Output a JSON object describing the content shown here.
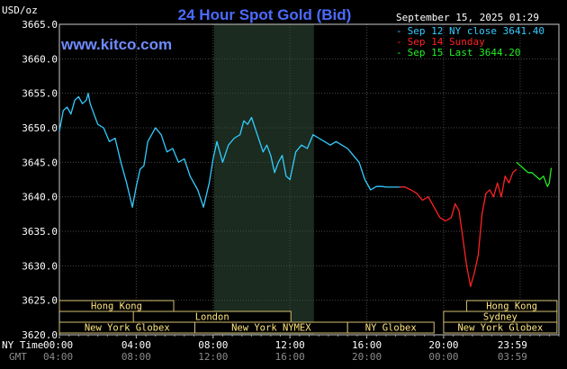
{
  "chart_data": {
    "type": "line",
    "title": "24 Hour Spot Gold (Bid)",
    "watermark": "www.kitco.com",
    "y_unit": "USD/oz",
    "timestamp": "September 15, 2025 01:29",
    "ylim": [
      3620,
      3665
    ],
    "y_ticks": [
      "3665.0",
      "3660.0",
      "3655.0",
      "3650.0",
      "3645.0",
      "3640.0",
      "3635.0",
      "3630.0",
      "3625.0",
      "3620.0"
    ],
    "x_row_labels": [
      "NY Time",
      "GMT"
    ],
    "x_ticks_ny": [
      "00:00",
      "04:00",
      "08:00",
      "12:00",
      "16:00",
      "20:00",
      "23:59"
    ],
    "x_ticks_gmt": [
      "04:00",
      "08:00",
      "12:00",
      "16:00",
      "20:00",
      "00:00",
      "03:59"
    ],
    "x_tick_hours": [
      0,
      4,
      8,
      12,
      16,
      20,
      23.983
    ],
    "legend": [
      {
        "text": "Sep 12 NY close 3641.40",
        "color": "#33ccff"
      },
      {
        "text": "Sep 14 Sunday",
        "color": "#ff2222"
      },
      {
        "text": "Sep 15 Last 3644.20",
        "color": "#22ee22"
      }
    ],
    "shaded_region_hours": [
      8.05,
      13.25
    ],
    "series": [
      {
        "color": "#33ccff",
        "x": [
          0,
          0.2,
          0.4,
          0.6,
          0.8,
          1.0,
          1.2,
          1.4,
          1.5,
          1.6,
          1.8,
          2.0,
          2.3,
          2.6,
          2.9,
          3.2,
          3.5,
          3.8,
          4.0,
          4.2,
          4.4,
          4.6,
          4.8,
          5.0,
          5.3,
          5.6,
          5.9,
          6.2,
          6.5,
          6.8,
          7.2,
          7.5,
          7.8,
          8.0,
          8.2,
          8.5,
          8.8,
          9.1,
          9.4,
          9.6,
          9.8,
          10.0,
          10.3,
          10.6,
          10.8,
          11.0,
          11.2,
          11.4,
          11.6,
          11.8,
          12.0,
          12.3,
          12.6,
          12.9,
          13.2,
          13.5,
          13.8,
          14.1,
          14.4,
          14.7,
          15.0,
          15.3,
          15.6,
          15.9,
          16.2,
          16.5,
          16.8,
          17.0,
          17.3,
          17.6,
          17.9,
          18.0
        ],
        "y": [
          3649.5,
          3652.5,
          3653.0,
          3652.0,
          3654.0,
          3654.5,
          3653.5,
          3654.0,
          3655.0,
          3653.5,
          3652.0,
          3650.5,
          3650.0,
          3648.0,
          3648.5,
          3645.0,
          3642.0,
          3638.5,
          3641.5,
          3644.0,
          3644.5,
          3648.0,
          3649.0,
          3650.0,
          3649.0,
          3646.5,
          3647.0,
          3645.0,
          3645.5,
          3643.0,
          3641.0,
          3638.5,
          3642.0,
          3645.5,
          3648.0,
          3645.0,
          3647.5,
          3648.5,
          3649.0,
          3651.0,
          3650.5,
          3651.5,
          3649.0,
          3646.5,
          3647.5,
          3646.0,
          3643.5,
          3645.0,
          3646.0,
          3643.0,
          3642.5,
          3646.5,
          3647.5,
          3647.0,
          3649.0,
          3648.5,
          3648.0,
          3647.5,
          3648.0,
          3647.5,
          3647.0,
          3646.0,
          3645.0,
          3642.5,
          3641.0,
          3641.5,
          3641.5,
          3641.4,
          3641.4,
          3641.4,
          3641.4,
          3641.4
        ]
      },
      {
        "color": "#ff2222",
        "x": [
          17.7,
          18.0,
          18.3,
          18.6,
          18.9,
          19.2,
          19.5,
          19.8,
          20.1,
          20.4,
          20.6,
          20.8,
          21.0,
          21.2,
          21.4,
          21.6,
          21.8,
          22.0,
          22.2,
          22.4,
          22.6,
          22.8,
          23.0,
          23.2,
          23.4,
          23.6,
          23.8
        ],
        "y": [
          3641.4,
          3641.4,
          3641.0,
          3640.5,
          3639.5,
          3640.0,
          3638.5,
          3637.0,
          3636.5,
          3637.0,
          3639.0,
          3638.0,
          3634.0,
          3630.0,
          3627.0,
          3629.0,
          3631.5,
          3637.5,
          3640.5,
          3641.0,
          3640.0,
          3642.0,
          3640.0,
          3643.0,
          3642.0,
          3643.5,
          3644.0
        ]
      },
      {
        "color": "#22ee22",
        "x": [
          23.8,
          24.0,
          24.2,
          24.4,
          24.6,
          24.8,
          25.0,
          25.2,
          25.4,
          25.5,
          25.6
        ],
        "y": [
          3645.0,
          3644.5,
          3644.0,
          3643.5,
          3643.5,
          3643.0,
          3642.5,
          3643.0,
          3641.5,
          3642.0,
          3644.2
        ]
      }
    ],
    "sessions": [
      {
        "name": "Hong Kong",
        "start": 0,
        "end": 5.95,
        "row": 0
      },
      {
        "name": "London",
        "start": 3.85,
        "end": 12.05,
        "row": 1
      },
      {
        "name": "New York Globex",
        "start": 0,
        "end": 7.05,
        "row": 2
      },
      {
        "name": "New York NYMEX",
        "start": 7.05,
        "end": 15.0,
        "row": 2
      },
      {
        "name": "NY Globex",
        "start": 15.0,
        "end": 19.5,
        "row": 2
      },
      {
        "name": "Hong Kong",
        "start": 21.2,
        "end": 25.9,
        "row": 0
      },
      {
        "name": "Sydney",
        "start": 20.0,
        "end": 25.9,
        "row": 1
      },
      {
        "name": "New York Globex",
        "start": 20.0,
        "end": 25.9,
        "row": 2
      }
    ]
  }
}
